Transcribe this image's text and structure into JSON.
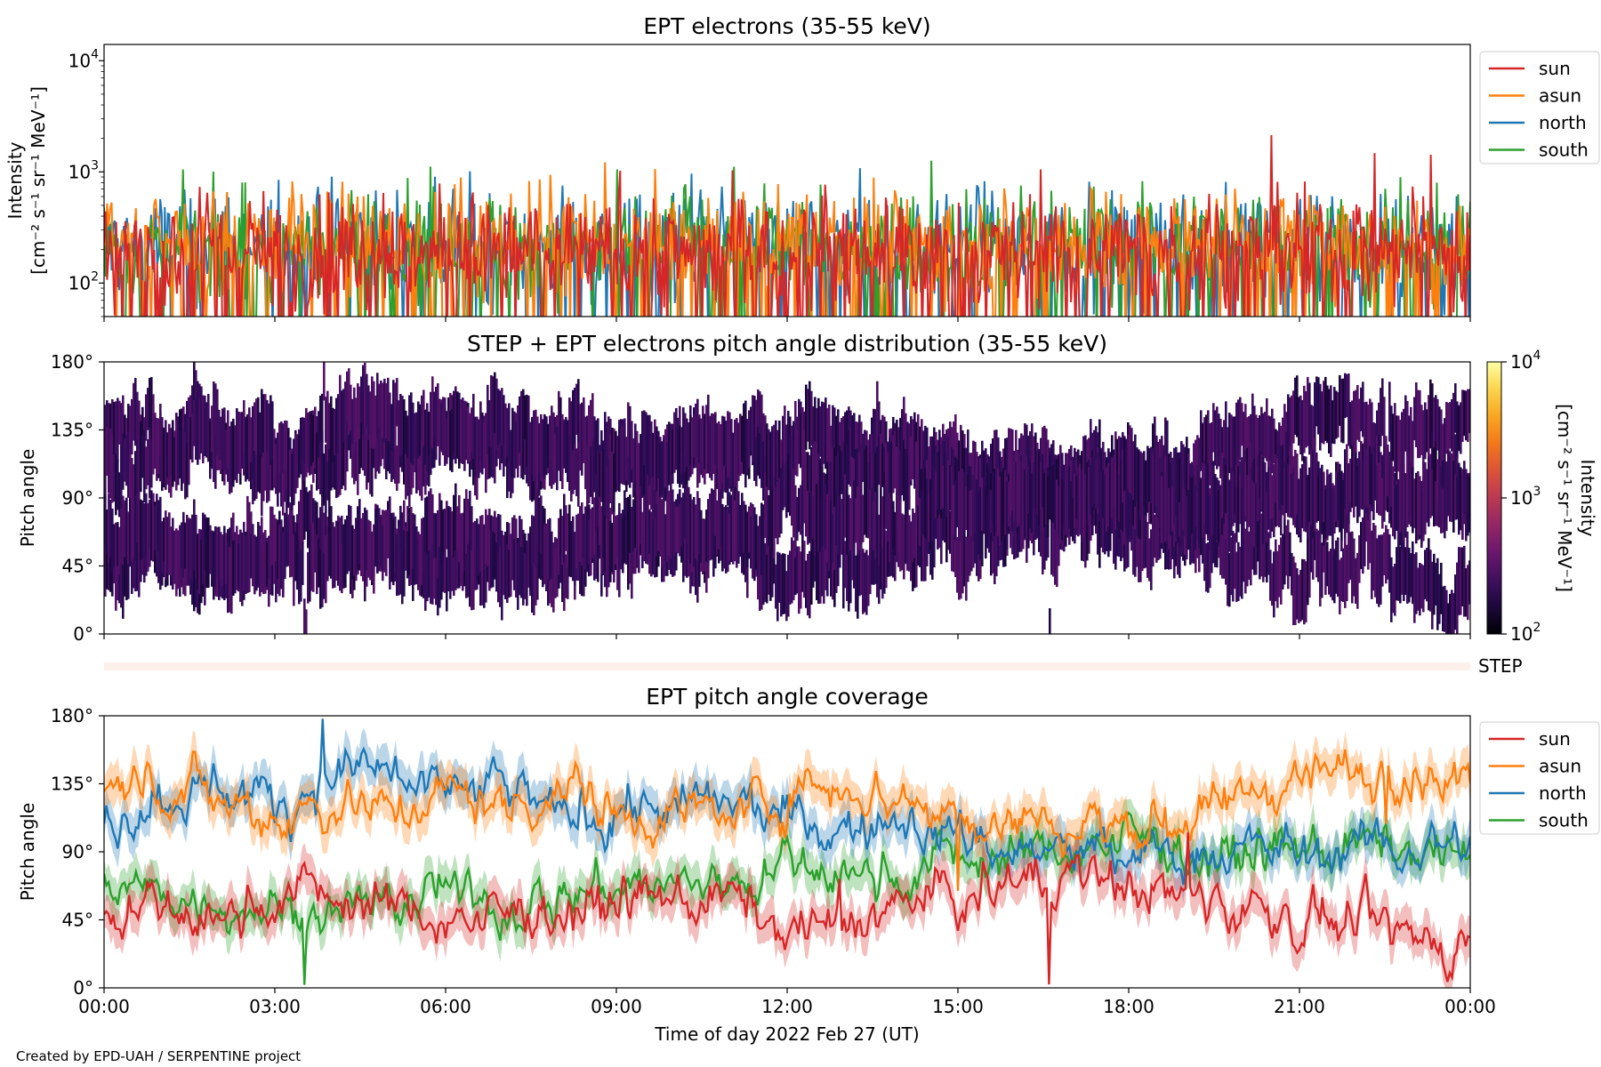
{
  "footer": "Created by EPD-UAH / SERPENTINE project",
  "chart_data": [
    {
      "panel": "intensity",
      "type": "line",
      "title": "EPT electrons (35-55 keV)",
      "ylabel_line1": "Intensity",
      "ylabel_line2": "[cm⁻² s⁻¹ sr⁻¹ MeV⁻¹]",
      "yscale": "log",
      "ylim": [
        50,
        14000
      ],
      "yticks": [
        100,
        1000,
        10000
      ],
      "ytick_labels": [
        [
          "10",
          "2"
        ],
        [
          "10",
          "3"
        ],
        [
          "10",
          "4"
        ]
      ],
      "xlim_hours": [
        0,
        24
      ],
      "legend_placement": "outside-upper-right",
      "series": [
        {
          "name": "sun",
          "color": "#d62728",
          "baseline": 190,
          "spread": 0.26
        },
        {
          "name": "asun",
          "color": "#ff7f0e",
          "baseline": 240,
          "spread": 0.24
        },
        {
          "name": "north",
          "color": "#1f77b4",
          "baseline": 220,
          "spread": 0.25
        },
        {
          "name": "south",
          "color": "#2ca02c",
          "baseline": 220,
          "spread": 0.25
        }
      ],
      "draw_order": [
        "north",
        "south",
        "asun",
        "sun"
      ]
    },
    {
      "panel": "pad",
      "type": "heatmap",
      "title": "STEP + EPT electrons pitch angle distribution (35-55 keV)",
      "ylabel": "Pitch angle",
      "ylim": [
        0,
        180
      ],
      "yticks": [
        "0°",
        "45°",
        "90°",
        "135°",
        "180°"
      ],
      "xlim_hours": [
        0,
        24
      ],
      "colorbar": {
        "label_line1": "Intensity",
        "label_line2": "[cm⁻² s⁻¹ sr⁻¹ MeV⁻¹]",
        "range": [
          100,
          10000
        ],
        "scale": "log",
        "colormap": "inferno",
        "ticks": [
          [
            "10",
            "2"
          ],
          [
            "10",
            "3"
          ],
          [
            "10",
            "4"
          ]
        ]
      }
    },
    {
      "panel": "step",
      "type": "heatmap",
      "label": "STEP",
      "color": "#fdf0ea"
    },
    {
      "panel": "coverage",
      "type": "area",
      "title": "EPT pitch angle coverage",
      "ylabel": "Pitch angle",
      "ylim": [
        0,
        180
      ],
      "yticks": [
        "0°",
        "45°",
        "90°",
        "135°",
        "180°"
      ],
      "xlabel": "Time of day 2022 Feb 27 (UT)",
      "xlim_hours": [
        0,
        24
      ],
      "xticks": [
        "00:00",
        "03:00",
        "06:00",
        "09:00",
        "12:00",
        "15:00",
        "18:00",
        "21:00",
        "00:00"
      ],
      "legend_placement": "outside-upper-right",
      "series": [
        {
          "name": "sun",
          "color": "#d62728",
          "x": [
            0,
            1,
            2,
            3,
            4,
            5,
            6,
            7,
            8,
            9,
            10,
            11,
            12,
            13,
            14,
            15,
            16,
            17,
            18,
            19,
            20,
            21,
            22,
            23,
            24
          ],
          "y": [
            55,
            50,
            42,
            65,
            62,
            52,
            48,
            45,
            55,
            58,
            56,
            60,
            38,
            42,
            55,
            58,
            70,
            72,
            68,
            62,
            55,
            45,
            38,
            30,
            35
          ]
        },
        {
          "name": "asun",
          "color": "#ff7f0e",
          "x": [
            0,
            1,
            2,
            3,
            4,
            5,
            6,
            7,
            8,
            9,
            10,
            11,
            12,
            13,
            14,
            15,
            16,
            17,
            18,
            19,
            20,
            21,
            22,
            23,
            24
          ],
          "y": [
            130,
            138,
            125,
            115,
            125,
            118,
            128,
            120,
            135,
            118,
            120,
            112,
            130,
            138,
            125,
            115,
            112,
            108,
            112,
            110,
            125,
            145,
            140,
            148,
            135
          ]
        },
        {
          "name": "north",
          "color": "#1f77b4",
          "x": [
            0,
            1,
            2,
            3,
            4,
            5,
            6,
            7,
            8,
            9,
            10,
            11,
            12,
            13,
            14,
            15,
            16,
            17,
            18,
            19,
            20,
            21,
            22,
            23,
            24
          ],
          "y": [
            110,
            130,
            135,
            120,
            145,
            140,
            125,
            130,
            112,
            122,
            115,
            120,
            110,
            105,
            110,
            100,
            92,
            88,
            85,
            90,
            92,
            88,
            90,
            92,
            95
          ]
        },
        {
          "name": "south",
          "color": "#2ca02c",
          "x": [
            0,
            1,
            2,
            3,
            4,
            5,
            6,
            7,
            8,
            9,
            10,
            11,
            12,
            13,
            14,
            15,
            16,
            17,
            18,
            19,
            20,
            21,
            22,
            23,
            24
          ],
          "y": [
            68,
            62,
            60,
            55,
            48,
            52,
            60,
            55,
            62,
            68,
            65,
            72,
            80,
            72,
            78,
            88,
            85,
            95,
            98,
            92,
            90,
            88,
            95,
            92,
            85
          ]
        }
      ]
    }
  ]
}
